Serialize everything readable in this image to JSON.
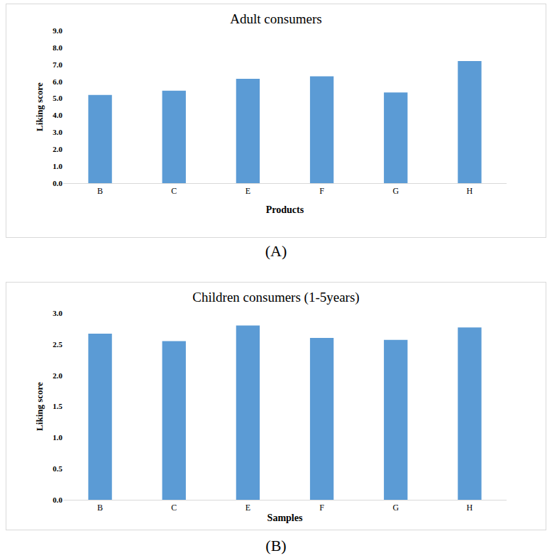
{
  "chart_data": [
    {
      "type": "bar",
      "title": "Adult consumers",
      "caption": "(A)",
      "x_label": "Products",
      "y_label": "Liking score",
      "categories": [
        "B",
        "C",
        "E",
        "F",
        "G",
        "H"
      ],
      "values": [
        5.2,
        5.45,
        6.15,
        6.3,
        5.35,
        7.2
      ],
      "color": "#5b9bd5",
      "ylim": [
        0,
        9
      ],
      "yticks": [
        {
          "value": 0,
          "label": "0.0"
        },
        {
          "value": 1,
          "label": "1.0"
        },
        {
          "value": 2,
          "label": "2.0"
        },
        {
          "value": 3,
          "label": "3.0"
        },
        {
          "value": 4,
          "label": "4.0"
        },
        {
          "value": 5,
          "label": "5.0"
        },
        {
          "value": 6,
          "label": "6.0"
        },
        {
          "value": 7,
          "label": "7.0"
        },
        {
          "value": 8,
          "label": "8.0"
        },
        {
          "value": 9,
          "label": "9.0"
        }
      ],
      "grid": false
    },
    {
      "type": "bar",
      "title": "Children consumers (1-5years)",
      "caption": "(B)",
      "x_label": "Samples",
      "y_label": "Liking score",
      "categories": [
        "B",
        "C",
        "E",
        "F",
        "G",
        "H"
      ],
      "values": [
        2.67,
        2.55,
        2.8,
        2.6,
        2.57,
        2.77
      ],
      "color": "#5b9bd5",
      "ylim": [
        0,
        3
      ],
      "yticks": [
        {
          "value": 0,
          "label": "0.0"
        },
        {
          "value": 0.5,
          "label": "0.5"
        },
        {
          "value": 1,
          "label": "1.0"
        },
        {
          "value": 1.5,
          "label": "1.5"
        },
        {
          "value": 2,
          "label": "2.0"
        },
        {
          "value": 2.5,
          "label": "2.5"
        },
        {
          "value": 3,
          "label": "3.0"
        }
      ],
      "grid": false
    }
  ]
}
